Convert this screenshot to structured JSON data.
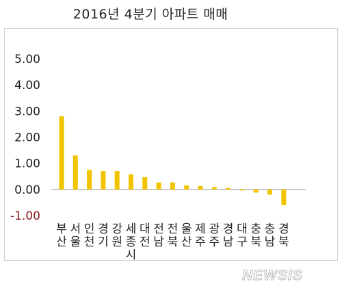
{
  "title": "2016년 4분기 아파트 매매",
  "watermark": "NEWSIS",
  "colors": {
    "bar": "#f2c400",
    "negative_tick": "#8b1a1a",
    "axis": "#999999",
    "text": "#222222"
  },
  "chart_data": {
    "type": "bar",
    "title": "2016년 4분기 아파트 매매",
    "categories": [
      "부산",
      "서울",
      "인천",
      "경기",
      "강원",
      "세종시",
      "대전",
      "전남",
      "전북",
      "울산",
      "제주",
      "광주",
      "경남",
      "대구",
      "충북",
      "충남",
      "경북"
    ],
    "values": [
      2.8,
      1.3,
      0.75,
      0.7,
      0.7,
      0.58,
      0.47,
      0.27,
      0.27,
      0.16,
      0.13,
      0.09,
      0.06,
      -0.04,
      -0.12,
      -0.2,
      -0.6
    ],
    "yticks": [
      "5.00",
      "4.00",
      "3.00",
      "2.00",
      "1.00",
      "0.00",
      "-1.00"
    ],
    "ylim": [
      -1,
      5
    ],
    "grid": false,
    "legend": "none"
  }
}
